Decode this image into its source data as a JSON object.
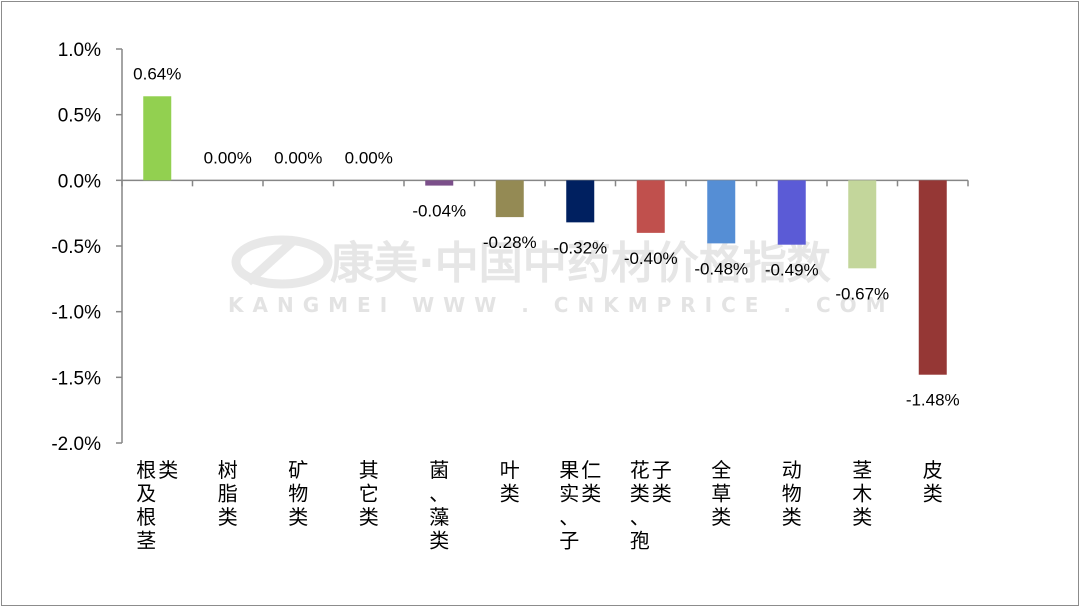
{
  "watermark": {
    "line1": "康美·中国中药材价格指数",
    "line2": "KANGMEI WWW . CNKMPRICE . COM"
  },
  "chart_data": {
    "type": "bar",
    "title": "",
    "xlabel": "",
    "ylabel": "",
    "ylim": [
      -2.0,
      1.0
    ],
    "yticks": [
      "1.0%",
      "0.5%",
      "0.0%",
      "-0.5%",
      "-1.0%",
      "-1.5%",
      "-2.0%"
    ],
    "ytick_values": [
      1.0,
      0.5,
      0.0,
      -0.5,
      -1.0,
      -1.5,
      -2.0
    ],
    "grid": false,
    "legend": "none",
    "categories": [
      "根及根茎类",
      "树脂类",
      "矿物类",
      "其它类",
      "菌、藻类",
      "叶类",
      "果实、子仁类",
      "花类、孢子类",
      "全草类",
      "动物类",
      "茎木类",
      "皮类"
    ],
    "values": [
      0.64,
      0.0,
      0.0,
      0.0,
      -0.04,
      -0.28,
      -0.32,
      -0.4,
      -0.48,
      -0.49,
      -0.67,
      -1.48
    ],
    "data_labels": [
      "0.64%",
      "0.00%",
      "0.00%",
      "0.00%",
      "-0.04%",
      "-0.28%",
      "-0.32%",
      "-0.40%",
      "-0.48%",
      "-0.49%",
      "-0.67%",
      "-1.48%"
    ],
    "colors": [
      "#92d050",
      "#92d050",
      "#92d050",
      "#92d050",
      "#7b4f8a",
      "#948a54",
      "#002060",
      "#c0504d",
      "#558ed5",
      "#5b5bd6",
      "#c3d69b",
      "#953735"
    ]
  }
}
